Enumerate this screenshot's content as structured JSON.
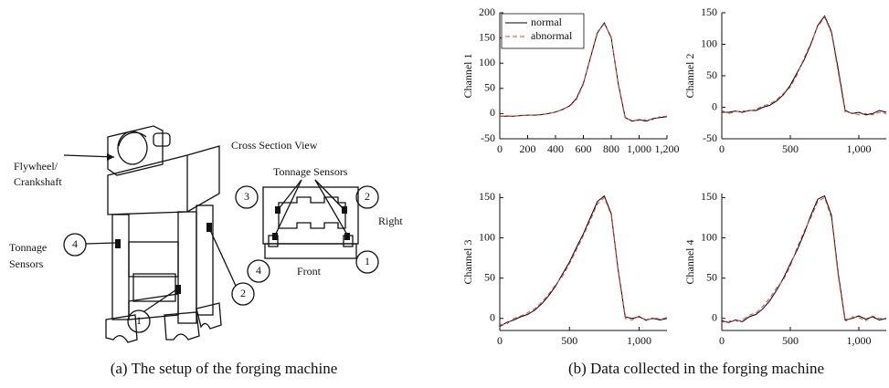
{
  "diagram": {
    "flywheel": [
      "Flywheel/",
      "Crankshaft"
    ],
    "tonnage_sensors_left": [
      "Tonnage",
      "Sensors"
    ],
    "cross_section_title": "Cross Section View",
    "tonnage_sensors_right": "Tonnage Sensors",
    "right": "Right",
    "front": "Front",
    "left_callouts": [
      "4",
      "2",
      "1"
    ],
    "right_callouts": [
      "3",
      "2",
      "1",
      "4"
    ]
  },
  "captions": [
    "(a) The setup of the forging machine",
    "(b) Data collected in the forging machine"
  ],
  "chart_data": [
    {
      "type": "line",
      "ylabel": "Channel 1",
      "x": [
        0,
        50,
        100,
        150,
        200,
        250,
        300,
        350,
        400,
        450,
        500,
        550,
        600,
        650,
        700,
        750,
        800,
        850,
        900,
        950,
        1000,
        1050,
        1100,
        1150,
        1200
      ],
      "xlim": [
        0,
        1200
      ],
      "xticks": [
        0,
        200,
        400,
        600,
        800,
        {
          "value": 1000,
          "label": "1,000"
        },
        {
          "value": 1200,
          "label": "1,200"
        }
      ],
      "ylim": [
        -50,
        200
      ],
      "yticks": [
        -50,
        0,
        50,
        100,
        150,
        200
      ],
      "series": [
        {
          "name": "normal",
          "color": "#000000",
          "linestyle": "solid",
          "values": [
            -5,
            -5,
            -5,
            -4,
            -3,
            -3,
            -2,
            0,
            3,
            8,
            15,
            30,
            60,
            110,
            160,
            180,
            150,
            60,
            -8,
            -15,
            -12,
            -15,
            -10,
            -8,
            -6
          ]
        },
        {
          "name": "abnormal",
          "color": "#e8413c",
          "linestyle": "dashed",
          "values": [
            -6,
            -4,
            -6,
            -3,
            -4,
            -2,
            -3,
            1,
            2,
            9,
            14,
            28,
            58,
            112,
            162,
            178,
            152,
            58,
            -10,
            -13,
            -14,
            -12,
            -12,
            -6,
            -5
          ]
        }
      ],
      "legend": "upper left"
    },
    {
      "type": "line",
      "ylabel": "Channel 2",
      "x": [
        0,
        50,
        100,
        150,
        200,
        250,
        300,
        350,
        400,
        450,
        500,
        550,
        600,
        650,
        700,
        750,
        800,
        850,
        900,
        950,
        1000,
        1050,
        1100,
        1150,
        1200
      ],
      "xlim": [
        0,
        1200
      ],
      "xticks": [
        0,
        500,
        {
          "value": 1000,
          "label": "1,000"
        }
      ],
      "ylim": [
        -50,
        150
      ],
      "yticks": [
        -50,
        0,
        50,
        100,
        150
      ],
      "series": [
        {
          "color": "#000000",
          "linestyle": "solid",
          "values": [
            -8,
            -8,
            -6,
            -8,
            -5,
            -5,
            0,
            3,
            10,
            20,
            35,
            55,
            75,
            100,
            130,
            145,
            120,
            60,
            -5,
            -10,
            -8,
            -12,
            -10,
            -5,
            -8
          ]
        },
        {
          "color": "#e8413c",
          "linestyle": "dashed",
          "values": [
            -5,
            -10,
            -7,
            -6,
            -6,
            -3,
            2,
            5,
            12,
            22,
            32,
            52,
            78,
            102,
            128,
            143,
            118,
            55,
            -8,
            -9,
            -12,
            -10,
            -12,
            -8,
            -10
          ]
        }
      ]
    },
    {
      "type": "line",
      "ylabel": "Channel 3",
      "x": [
        0,
        50,
        100,
        150,
        200,
        250,
        300,
        350,
        400,
        450,
        500,
        550,
        600,
        650,
        700,
        750,
        800,
        850,
        900,
        950,
        1000,
        1050,
        1100,
        1150,
        1200
      ],
      "xlim": [
        0,
        1200
      ],
      "xticks": [
        0,
        500,
        {
          "value": 1000,
          "label": "1,000"
        }
      ],
      "ylim": [
        -15,
        155
      ],
      "yticks": [
        0,
        50,
        100,
        150
      ],
      "series": [
        {
          "color": "#000000",
          "linestyle": "solid",
          "values": [
            -10,
            -5,
            -2,
            2,
            5,
            10,
            18,
            28,
            40,
            55,
            70,
            88,
            105,
            125,
            145,
            152,
            130,
            60,
            2,
            0,
            2,
            -2,
            0,
            -2,
            0
          ]
        },
        {
          "color": "#e8413c",
          "linestyle": "dashed",
          "values": [
            -8,
            -7,
            0,
            3,
            7,
            12,
            20,
            30,
            42,
            52,
            68,
            85,
            103,
            122,
            142,
            150,
            128,
            58,
            0,
            -2,
            3,
            -3,
            1,
            -1,
            1
          ]
        }
      ]
    },
    {
      "type": "line",
      "ylabel": "Channel 4",
      "x": [
        0,
        50,
        100,
        150,
        200,
        250,
        300,
        350,
        400,
        450,
        500,
        550,
        600,
        650,
        700,
        750,
        800,
        850,
        900,
        950,
        1000,
        1050,
        1100,
        1150,
        1200
      ],
      "xlim": [
        0,
        1200
      ],
      "xticks": [
        0,
        500,
        {
          "value": 1000,
          "label": "1,000"
        }
      ],
      "ylim": [
        -15,
        155
      ],
      "yticks": [
        0,
        50,
        100,
        150
      ],
      "series": [
        {
          "color": "#000000",
          "linestyle": "solid",
          "values": [
            -3,
            -5,
            -2,
            -4,
            2,
            5,
            12,
            22,
            35,
            50,
            68,
            85,
            105,
            128,
            148,
            152,
            128,
            55,
            -2,
            0,
            3,
            -1,
            2,
            -2,
            0
          ]
        },
        {
          "color": "#e8413c",
          "linestyle": "dashed",
          "values": [
            -5,
            -3,
            -4,
            -2,
            4,
            7,
            15,
            25,
            38,
            48,
            65,
            88,
            108,
            125,
            145,
            150,
            125,
            52,
            -4,
            2,
            1,
            -3,
            3,
            0,
            -1
          ]
        }
      ]
    }
  ]
}
